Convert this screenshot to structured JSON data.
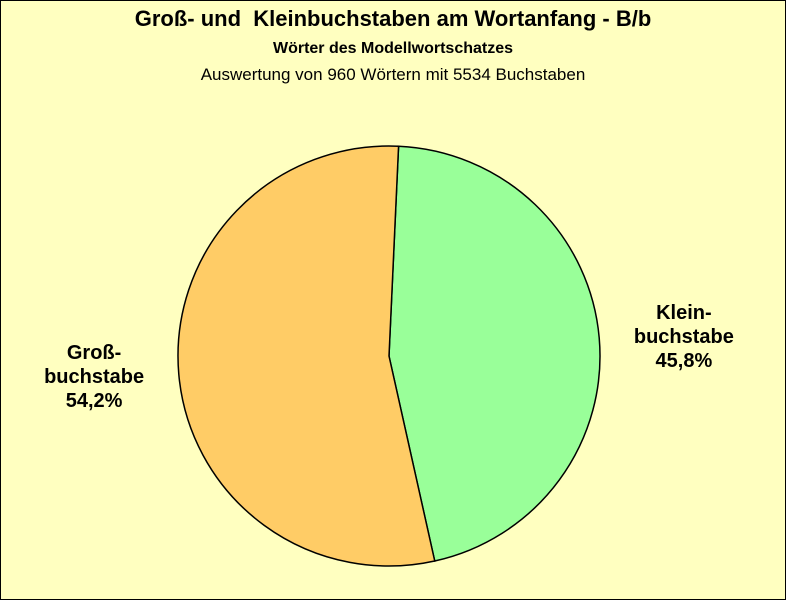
{
  "chart_data": {
    "type": "pie",
    "title": "Groß- und  Kleinbuchstaben am Wortanfang - B/b",
    "subtitle": "Wörter des Modellwortschatzes",
    "caption": "Auswertung von 960 Wörtern mit 5534 Buchstaben",
    "slices": [
      {
        "label_lines": [
          "Klein-",
          "buchstabe",
          "45,8%"
        ],
        "value": 45.8,
        "color": "#99ff99"
      },
      {
        "label_lines": [
          "Groß-",
          "buchstabe",
          "54,2%"
        ],
        "value": 54.2,
        "color": "#ffcc66"
      }
    ]
  }
}
